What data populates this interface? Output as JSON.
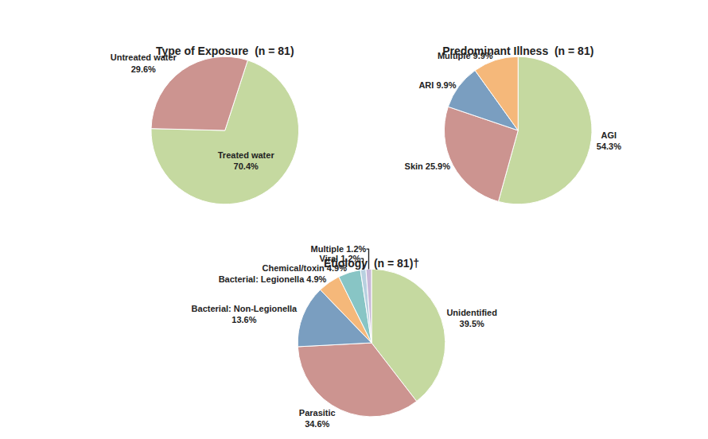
{
  "chart_data": [
    {
      "type": "pie",
      "title": "Type of Exposure  (n = 81)",
      "values": [
        70.4,
        29.6
      ],
      "value_labels": [
        "Treated water\n70.4%",
        "Untreated water\n29.6%"
      ],
      "colors": [
        "#c5d9a0",
        "#cc9490"
      ]
    },
    {
      "type": "pie",
      "title": "Predominant Illness  (n = 81)",
      "values": [
        54.3,
        25.9,
        9.9,
        9.9
      ],
      "value_labels": [
        "AGI\n54.3%",
        "Skin 25.9%",
        "ARI 9.9%",
        "Multiple 9.9%"
      ],
      "colors": [
        "#c5d9a0",
        "#cc9490",
        "#7a9ec0",
        "#f5b87a"
      ]
    },
    {
      "type": "pie",
      "title": "Etiology  (n = 81)†",
      "values": [
        39.5,
        34.6,
        13.6,
        4.9,
        4.9,
        1.2,
        1.2
      ],
      "value_labels": [
        "Unidentified\n39.5%",
        "Parasitic\n34.6%",
        "Bacterial: Non-Legionella\n13.6%",
        "Bacterial: Legionella 4.9%",
        "Chemical/toxin 4.9%",
        "Viral 1.2%",
        "Multiple 1.2%"
      ],
      "colors": [
        "#c5d9a0",
        "#cc9490",
        "#7a9ec0",
        "#f5b87a",
        "#88c5c5",
        "#b8d0e0",
        "#c8b8d8"
      ]
    }
  ]
}
